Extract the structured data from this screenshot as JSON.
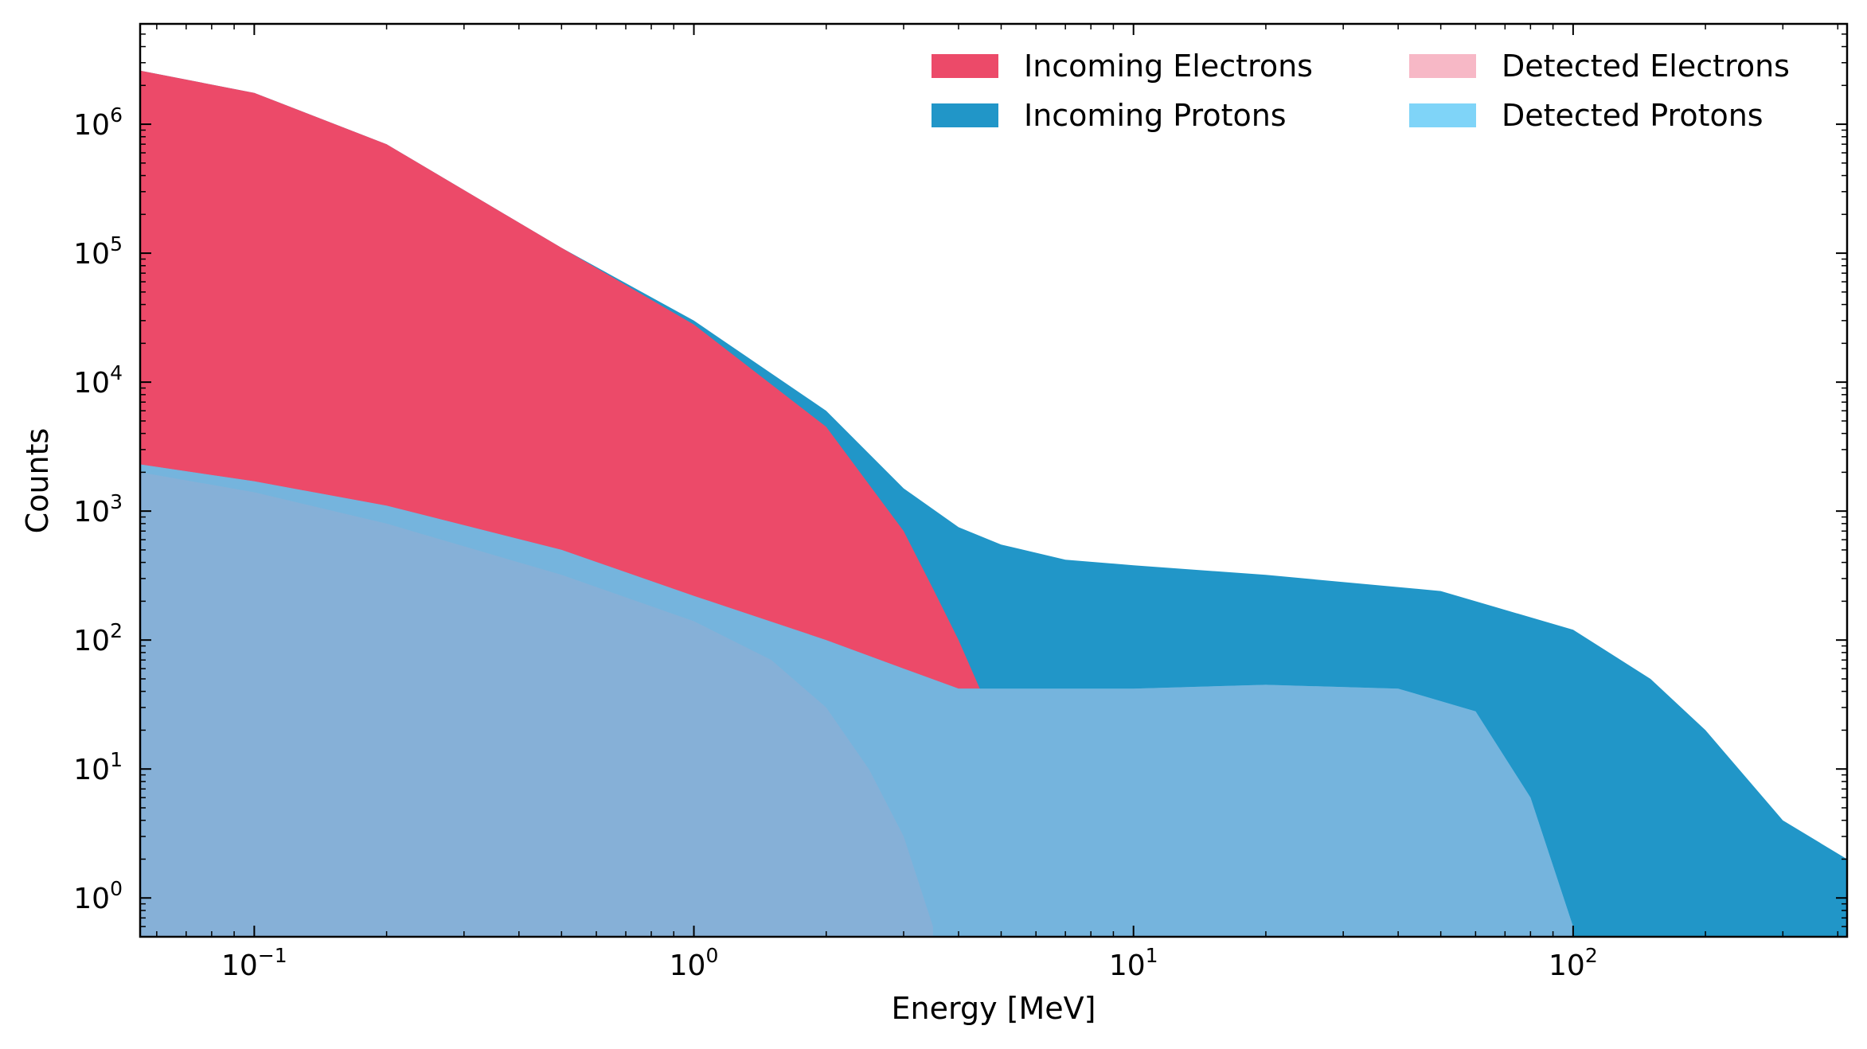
{
  "chart_data": {
    "type": "area",
    "title": "",
    "xlabel": "Energy [MeV]",
    "ylabel": "Counts",
    "xscale": "log",
    "yscale": "log",
    "xlim": [
      0.055,
      420
    ],
    "ylim": [
      0.5,
      6000000
    ],
    "grid": false,
    "legend_position": "top-right",
    "legend_columns": 2,
    "x_ticks": [
      {
        "base": "10",
        "exp": "−1",
        "value": 0.1
      },
      {
        "base": "10",
        "exp": "0",
        "value": 1
      },
      {
        "base": "10",
        "exp": "1",
        "value": 10
      },
      {
        "base": "10",
        "exp": "2",
        "value": 100
      }
    ],
    "y_ticks": [
      {
        "base": "10",
        "exp": "6",
        "value": 1000000
      },
      {
        "base": "10",
        "exp": "5",
        "value": 100000
      },
      {
        "base": "10",
        "exp": "4",
        "value": 10000
      },
      {
        "base": "10",
        "exp": "3",
        "value": 1000
      },
      {
        "base": "10",
        "exp": "2",
        "value": 100
      },
      {
        "base": "10",
        "exp": "1",
        "value": 10
      },
      {
        "base": "10",
        "exp": "0",
        "value": 1
      }
    ],
    "series": [
      {
        "name": "Incoming Protons",
        "color": "#2196C8",
        "x": [
          0.055,
          0.1,
          0.2,
          0.5,
          1.0,
          2.0,
          3.0,
          4.0,
          5.0,
          7.0,
          10,
          20,
          50,
          100,
          150,
          200,
          300,
          420
        ],
        "values": [
          2600000,
          1750000,
          700000,
          110000,
          30000,
          6000,
          1500,
          750,
          550,
          420,
          380,
          320,
          240,
          120,
          50,
          20,
          4,
          2
        ]
      },
      {
        "name": "Incoming Electrons",
        "color": "#EC4A69",
        "x": [
          0.055,
          0.1,
          0.2,
          0.5,
          1.0,
          2.0,
          3.0,
          3.5,
          4.0,
          4.5
        ],
        "values": [
          2600000,
          1750000,
          700000,
          110000,
          28000,
          4500,
          700,
          250,
          100,
          40
        ]
      },
      {
        "name": "Detected Protons",
        "color": "#4DC0EC",
        "x": [
          0.055,
          0.1,
          0.2,
          0.5,
          1.0,
          2.0,
          3.0,
          4.0,
          5.0,
          10,
          20,
          40,
          60,
          80,
          100
        ],
        "values": [
          2300,
          1700,
          1100,
          500,
          220,
          100,
          60,
          42,
          42,
          42,
          45,
          42,
          28,
          6,
          0.6
        ]
      },
      {
        "name": "Detected Electrons",
        "color": "#F196A8",
        "x": [
          0.055,
          0.1,
          0.2,
          0.5,
          1.0,
          1.5,
          2.0,
          2.5,
          3.0,
          3.5
        ],
        "values": [
          2000,
          1400,
          800,
          320,
          140,
          70,
          30,
          10,
          3,
          0.6
        ]
      }
    ],
    "overlap_color": "#7AB3DB"
  }
}
